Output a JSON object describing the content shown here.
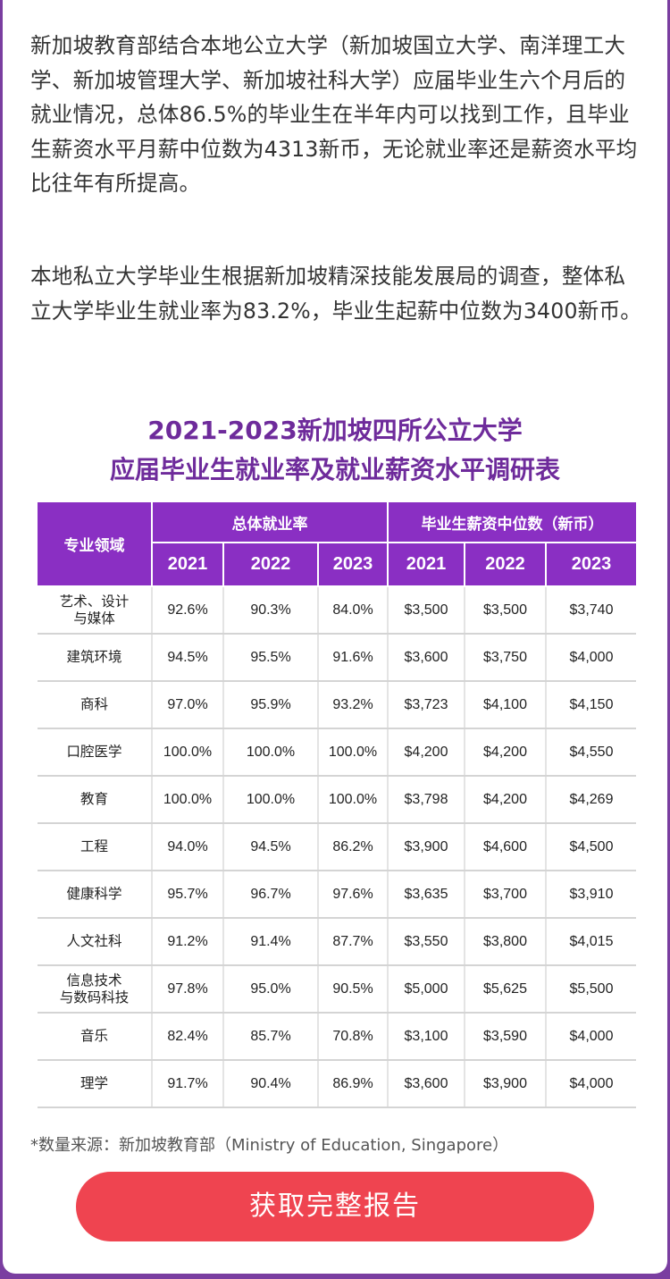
{
  "intro": {
    "paragraph_1": "新加坡教育部结合本地公立大学（新加坡国立大学、南洋理工大学、新加坡管理大学、新加坡社科大学）应届毕业生六个月后的就业情况，总体86.5%的毕业生在半年内可以找到工作，且毕业生薪资水平月薪中位数为4313新币，无论就业率还是薪资水平均比往年有所提高。",
    "paragraph_2": "本地私立大学毕业生根据新加坡精深技能发展局的调查，整体私立大学毕业生就业率为83.2%，毕业生起薪中位数为3400新币。"
  },
  "table": {
    "title_line_1": "2021-2023新加坡四所公立大学",
    "title_line_2": "应届毕业生就业率及就业薪资水平调研表",
    "header": {
      "field": "专业领域",
      "employment_group": "总体就业率",
      "salary_group": "毕业生薪资中位数（新币）",
      "years": [
        "2021",
        "2022",
        "2023",
        "2021",
        "2022",
        "2023"
      ]
    },
    "rows": [
      {
        "field": "艺术、设计\n与媒体",
        "values": [
          "92.6%",
          "90.3%",
          "84.0%",
          "$3,500",
          "$3,500",
          "$3,740"
        ]
      },
      {
        "field": "建筑环境",
        "values": [
          "94.5%",
          "95.5%",
          "91.6%",
          "$3,600",
          "$3,750",
          "$4,000"
        ]
      },
      {
        "field": "商科",
        "values": [
          "97.0%",
          "95.9%",
          "93.2%",
          "$3,723",
          "$4,100",
          "$4,150"
        ]
      },
      {
        "field": "口腔医学",
        "values": [
          "100.0%",
          "100.0%",
          "100.0%",
          "$4,200",
          "$4,200",
          "$4,550"
        ]
      },
      {
        "field": "教育",
        "values": [
          "100.0%",
          "100.0%",
          "100.0%",
          "$3,798",
          "$4,200",
          "$4,269"
        ]
      },
      {
        "field": "工程",
        "values": [
          "94.0%",
          "94.5%",
          "86.2%",
          "$3,900",
          "$4,600",
          "$4,500"
        ]
      },
      {
        "field": "健康科学",
        "values": [
          "95.7%",
          "96.7%",
          "97.6%",
          "$3,635",
          "$3,700",
          "$3,910"
        ]
      },
      {
        "field": "人文社科",
        "values": [
          "91.2%",
          "91.4%",
          "87.7%",
          "$3,550",
          "$3,800",
          "$4,015"
        ]
      },
      {
        "field": "信息技术\n与数码科技",
        "values": [
          "97.8%",
          "95.0%",
          "90.5%",
          "$5,000",
          "$5,625",
          "$5,500"
        ]
      },
      {
        "field": "音乐",
        "values": [
          "82.4%",
          "85.7%",
          "70.8%",
          "$3,100",
          "$3,590",
          "$4,000"
        ]
      },
      {
        "field": "理学",
        "values": [
          "91.7%",
          "90.4%",
          "86.9%",
          "$3,600",
          "$3,900",
          "$4,000"
        ]
      }
    ]
  },
  "source_note": "*数量来源：新加坡教育部（Ministry of Education, Singapore）",
  "cta_label": "获取完整报告",
  "colors": {
    "header_purple": "#8a2fc3",
    "title_purple": "#6e2b9b",
    "cta_red": "#ef4450"
  }
}
